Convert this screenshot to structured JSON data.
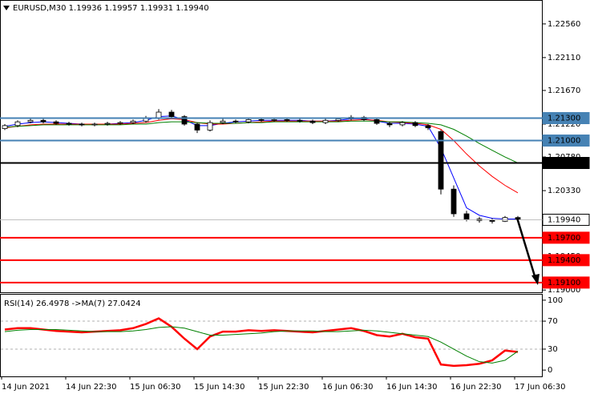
{
  "chart_data": [
    {
      "type": "candlestick",
      "title": "EURUSD,M30  1.19936 1.19957 1.19931 1.19940",
      "open": [
        1.2116,
        1.212,
        1.2125,
        1.2127,
        1.2125,
        1.2123,
        1.2122,
        1.2121,
        1.2122,
        1.2123,
        1.2124,
        1.2126,
        1.213,
        1.2138,
        1.2132,
        1.2122,
        1.2114,
        1.2124,
        1.2126,
        1.2125,
        1.2128,
        1.2127,
        1.2128,
        1.2127,
        1.2126,
        1.2124,
        1.2127,
        1.2129,
        1.2131,
        1.2128,
        1.2123,
        1.2121,
        1.2124,
        1.212,
        1.2112,
        1.2035,
        1.2002,
        1.1995,
        1.1993,
        1.1992,
        1.1997
      ],
      "high": [
        1.2122,
        1.2127,
        1.213,
        1.2129,
        1.2127,
        1.2125,
        1.2124,
        1.2124,
        1.2125,
        1.2126,
        1.2128,
        1.2133,
        1.2142,
        1.2141,
        1.2134,
        1.2124,
        1.2127,
        1.2129,
        1.2128,
        1.213,
        1.213,
        1.213,
        1.213,
        1.2129,
        1.2128,
        1.2129,
        1.2131,
        1.2134,
        1.2133,
        1.213,
        1.2125,
        1.2126,
        1.2126,
        1.2122,
        1.2114,
        1.204,
        1.2006,
        1.1998,
        1.1996,
        1.1999,
        1.1999
      ],
      "low": [
        1.2114,
        1.2118,
        1.2123,
        1.2123,
        1.2121,
        1.212,
        1.2119,
        1.2119,
        1.212,
        1.2121,
        1.2122,
        1.2124,
        1.2128,
        1.213,
        1.212,
        1.211,
        1.2112,
        1.2122,
        1.2123,
        1.2123,
        1.2125,
        1.2125,
        1.2125,
        1.2124,
        1.2122,
        1.2122,
        1.2125,
        1.2127,
        1.2126,
        1.2121,
        1.2118,
        1.2119,
        1.2118,
        1.2114,
        1.2028,
        1.1998,
        1.1992,
        1.199,
        1.1989,
        1.1991,
        1.1993
      ],
      "close": [
        1.212,
        1.2125,
        1.2127,
        1.2125,
        1.2123,
        1.2122,
        1.2121,
        1.2122,
        1.2123,
        1.2124,
        1.2126,
        1.213,
        1.2138,
        1.2132,
        1.2122,
        1.2114,
        1.2124,
        1.2126,
        1.2125,
        1.2128,
        1.2127,
        1.2128,
        1.2127,
        1.2126,
        1.2124,
        1.2127,
        1.2129,
        1.2131,
        1.2128,
        1.2123,
        1.2121,
        1.2124,
        1.212,
        1.2117,
        1.2035,
        1.2002,
        1.1995,
        1.1993,
        1.1992,
        1.1997,
        1.1994
      ],
      "series": [
        {
          "color": "#0000ff",
          "values": [
            1.2119,
            1.2122,
            1.2124,
            1.2125,
            1.2124,
            1.2123,
            1.2122,
            1.2122,
            1.2122,
            1.2123,
            1.2124,
            1.2127,
            1.2132,
            1.2133,
            1.2128,
            1.212,
            1.212,
            1.2123,
            1.2125,
            1.2126,
            1.2127,
            1.2127,
            1.2127,
            1.2127,
            1.2126,
            1.2126,
            1.2127,
            1.2129,
            1.2129,
            1.2126,
            1.2123,
            1.2123,
            1.2122,
            1.2119,
            1.209,
            1.205,
            1.201,
            1.2,
            1.1996,
            1.1995,
            1.1995
          ]
        },
        {
          "color": "#ff0000",
          "values": [
            1.2117,
            1.2119,
            1.2121,
            1.2122,
            1.2122,
            1.2122,
            1.2122,
            1.2122,
            1.2122,
            1.2122,
            1.2123,
            1.2124,
            1.2127,
            1.2129,
            1.2128,
            1.2124,
            1.2122,
            1.2122,
            1.2123,
            1.2124,
            1.2125,
            1.2126,
            1.2126,
            1.2126,
            1.2126,
            1.2126,
            1.2126,
            1.2127,
            1.2128,
            1.2127,
            1.2125,
            1.2124,
            1.2123,
            1.2121,
            1.2115,
            1.21,
            1.2082,
            1.2066,
            1.2052,
            1.204,
            1.203
          ]
        },
        {
          "color": "#008000",
          "values": [
            1.2118,
            1.2119,
            1.212,
            1.2121,
            1.2121,
            1.2121,
            1.2121,
            1.2121,
            1.2121,
            1.2121,
            1.2122,
            1.2122,
            1.2124,
            1.2125,
            1.2125,
            1.2124,
            1.2123,
            1.2123,
            1.2123,
            1.2124,
            1.2124,
            1.2125,
            1.2125,
            1.2125,
            1.2125,
            1.2125,
            1.2125,
            1.2126,
            1.2126,
            1.2126,
            1.2125,
            1.2125,
            1.2124,
            1.2123,
            1.2121,
            1.2115,
            1.2106,
            1.2096,
            1.2087,
            1.2078,
            1.207
          ]
        }
      ],
      "ylim": [
        1.1897,
        1.2288
      ],
      "yticks": [
        {
          "value": 1.2256,
          "label": "1.22560"
        },
        {
          "value": 1.2211,
          "label": "1.22110"
        },
        {
          "value": 1.2167,
          "label": "1.21670"
        },
        {
          "value": 1.2122,
          "label": "1.21220"
        },
        {
          "value": 1.2078,
          "label": "1.20780"
        },
        {
          "value": 1.2033,
          "label": "1.20330"
        },
        {
          "value": 1.1945,
          "label": "1.19450"
        },
        {
          "value": 1.19,
          "label": "1.19000"
        }
      ],
      "levels": [
        {
          "value": 1.213,
          "label": "1.21300",
          "color": "#4682b4"
        },
        {
          "value": 1.21,
          "label": "1.21000",
          "color": "#4682b4"
        },
        {
          "value": 1.207,
          "label": "1.20700",
          "color": "#000000"
        },
        {
          "value": 1.1994,
          "label": "1.19940",
          "color": "#c0c0c0"
        },
        {
          "value": 1.197,
          "label": "1.19700",
          "color": "#ff0000"
        },
        {
          "value": 1.194,
          "label": "1.19400",
          "color": "#ff0000"
        },
        {
          "value": 1.191,
          "label": "1.19100",
          "color": "#ff0000"
        }
      ]
    },
    {
      "type": "line",
      "title": "RSI(14) 26.4978  ->MA(7) 27.0424",
      "categories": [
        "14 Jun 2021",
        null,
        null,
        null,
        null,
        "14 Jun 22:30",
        null,
        null,
        null,
        null,
        "15 Jun 06:30",
        null,
        null,
        null,
        null,
        "15 Jun 14:30",
        null,
        null,
        null,
        null,
        "15 Jun 22:30",
        null,
        null,
        null,
        null,
        "16 Jun 06:30",
        null,
        null,
        null,
        null,
        "16 Jun 14:30",
        null,
        null,
        null,
        null,
        "16 Jun 22:30",
        null,
        null,
        null,
        null,
        "17 Jun 06:30"
      ],
      "series": [
        {
          "color": "#ff0000",
          "values": [
            58,
            60,
            60,
            58,
            56,
            55,
            54,
            55,
            56,
            57,
            60,
            66,
            74,
            62,
            45,
            30,
            48,
            55,
            55,
            57,
            56,
            57,
            56,
            55,
            54,
            56,
            58,
            60,
            56,
            50,
            48,
            52,
            47,
            45,
            8,
            6,
            7,
            9,
            14,
            28,
            26
          ]
        },
        {
          "color": "#008000",
          "values": [
            55,
            57,
            58,
            58,
            58,
            57,
            56,
            55,
            55,
            55,
            56,
            58,
            61,
            62,
            60,
            55,
            50,
            50,
            51,
            52,
            53,
            55,
            56,
            56,
            56,
            55,
            55,
            56,
            57,
            56,
            54,
            52,
            50,
            48,
            40,
            30,
            20,
            12,
            10,
            14,
            27
          ]
        }
      ],
      "ylim": [
        -9,
        109
      ],
      "yticks": [
        100,
        70,
        30,
        0
      ],
      "dashed_levels": [
        70,
        30
      ]
    }
  ]
}
